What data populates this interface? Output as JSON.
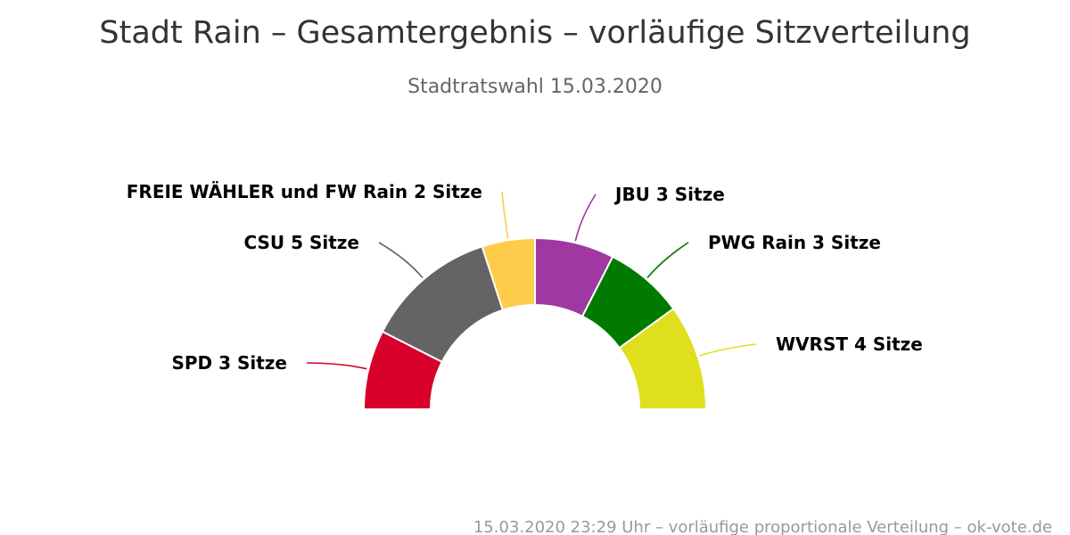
{
  "chart_data": {
    "type": "pie",
    "variant": "semicircle",
    "title": "Stadt Rain – Gesamtergebnis – vorläufige Sitzverteilung",
    "subtitle": "Stadtratswahl 15.03.2020",
    "credits": "15.03.2020 23:29 Uhr – vorläufige proportionale Verteilung – ok-vote.de",
    "unit": "Sitze",
    "categories": [
      "SPD",
      "CSU",
      "FREIE WÄHLER und FW Rain",
      "JBU",
      "PWG Rain",
      "WVRST"
    ],
    "values": [
      3,
      5,
      2,
      3,
      3,
      4
    ],
    "labels": [
      "SPD 3 Sitze",
      "CSU 5 Sitze",
      "FREIE WÄHLER und FW Rain 2 Sitze",
      "JBU 3 Sitze",
      "PWG Rain 3 Sitze",
      "WVRST 4 Sitze"
    ],
    "colors": [
      "#d7002a",
      "#646464",
      "#ffcb4a",
      "#9f38a0",
      "#007a00",
      "#dfdf1e"
    ],
    "legend": "none"
  }
}
